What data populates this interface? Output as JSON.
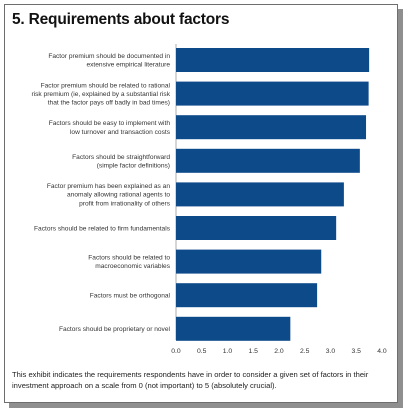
{
  "title": "5. Requirements about factors",
  "caption": "This exhibit indicates the requirements respondents have in order to consider a given set of factors in their investment approach on a scale from 0 (not important) to 5 (absolutely crucial).",
  "colors": {
    "bar": "#0d4a8a",
    "axis": "#9a9a9a"
  },
  "chart_data": {
    "type": "bar",
    "orientation": "horizontal",
    "categories": [
      [
        "Factor premium should be documented in",
        "extensive empirical literature"
      ],
      [
        "Factor premium should be related to rational",
        "risk premium (ie, explained by a substantial risk",
        "that the factor pays off badly in bad times)"
      ],
      [
        "Factors should be easy to implement with",
        "low turnover and transaction costs"
      ],
      [
        "Factors should be straightforward",
        "(simple factor definitions)"
      ],
      [
        "Factor premium has been explained as an",
        "anomaly allowing rational agents to",
        "profit from irrationality of others"
      ],
      [
        "Factors should be related to firm fundamentals"
      ],
      [
        "Factors should be related to",
        "macroeconomic variables"
      ],
      [
        "Factors must be orthogonal"
      ],
      [
        "Factors should be proprietary or novel"
      ]
    ],
    "values": [
      3.75,
      3.74,
      3.69,
      3.57,
      3.26,
      3.11,
      2.82,
      2.74,
      2.22
    ],
    "xlim": [
      0,
      4
    ],
    "xticks": [
      "0.0",
      "0.5",
      "1.0",
      "1.5",
      "2.0",
      "2.5",
      "3.0",
      "3.5",
      "4.0"
    ],
    "grid": false,
    "legend": "none"
  }
}
